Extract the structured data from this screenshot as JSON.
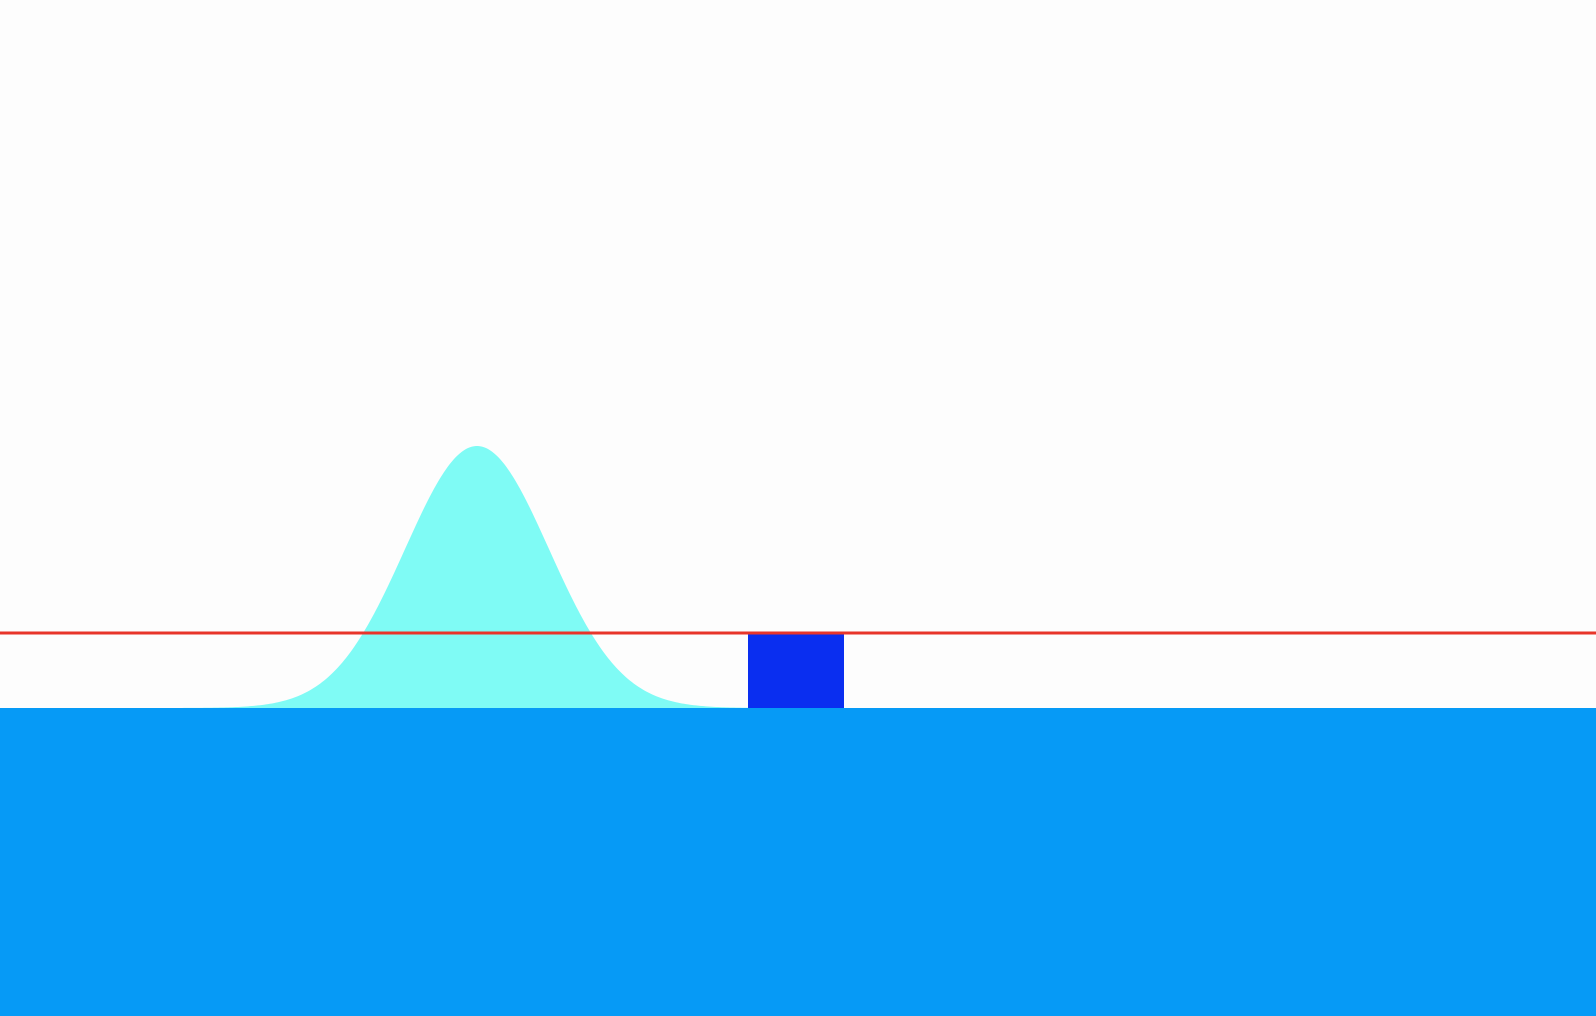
{
  "diagram": {
    "elements": [
      {
        "name": "background",
        "color": "#fdfdfd"
      },
      {
        "name": "wave-packet",
        "shape": "gaussian",
        "color": "#7ffbf5"
      },
      {
        "name": "potential-barrier",
        "color": "#0a2ef0"
      },
      {
        "name": "energy-level-line",
        "color": "#e8352a"
      },
      {
        "name": "ground-region",
        "color": "#069af6"
      }
    ]
  }
}
